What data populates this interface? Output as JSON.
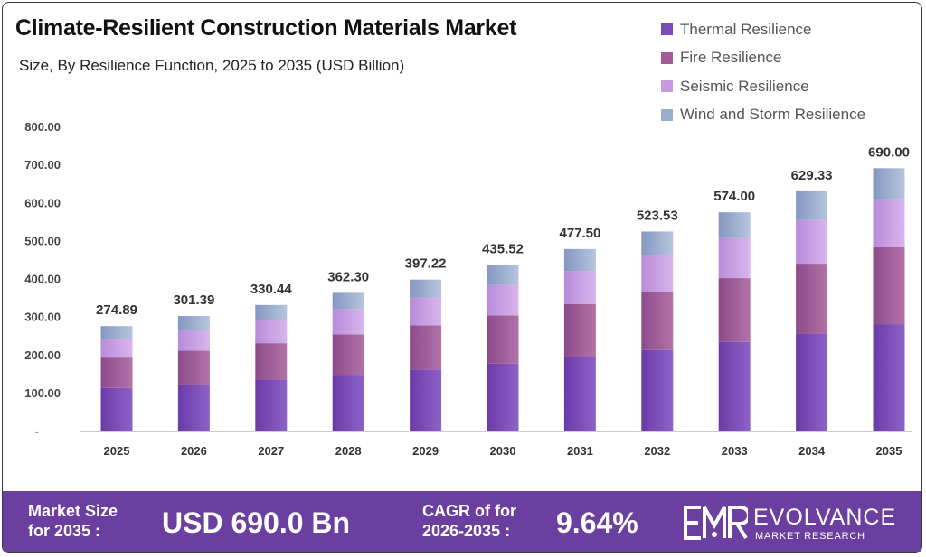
{
  "title": "Climate-Resilient Construction Materials Market",
  "subtitle": "Size, By Resilience Function, 2025 to 2035 (USD Billion)",
  "legend": [
    {
      "label": "Thermal Resilience",
      "color": "#7b4bb8"
    },
    {
      "label": "Fire Resilience",
      "color": "#a45b98"
    },
    {
      "label": "Seismic Resilience",
      "color": "#c79be0"
    },
    {
      "label": "Wind and Storm Resilience",
      "color": "#9aaed0"
    }
  ],
  "chart_data": {
    "type": "bar",
    "stacked": true,
    "categories": [
      "2025",
      "2026",
      "2027",
      "2028",
      "2029",
      "2030",
      "2031",
      "2032",
      "2033",
      "2034",
      "2035"
    ],
    "totals": [
      "274.89",
      "301.39",
      "330.44",
      "362.30",
      "397.22",
      "435.52",
      "477.50",
      "523.53",
      "574.00",
      "629.33",
      "690.00"
    ],
    "series": [
      {
        "name": "Thermal Resilience",
        "values": [
          112,
          122,
          134,
          147,
          161,
          176,
          194,
          212,
          233,
          255,
          280
        ]
      },
      {
        "name": "Fire Resilience",
        "values": [
          80,
          88,
          96,
          106,
          116,
          127,
          139,
          153,
          168,
          184,
          202
        ]
      },
      {
        "name": "Seismic Resilience",
        "values": [
          50,
          55,
          60,
          66,
          73,
          80,
          87,
          96,
          105,
          115,
          126
        ]
      },
      {
        "name": "Wind and Storm Resilience",
        "values": [
          32.89,
          36.39,
          40.44,
          43.3,
          47.22,
          52.52,
          57.5,
          62.53,
          68.0,
          75.33,
          82.0
        ]
      }
    ],
    "ylim": [
      0,
      800
    ],
    "yticks": [
      "-",
      "100.00",
      "200.00",
      "300.00",
      "400.00",
      "500.00",
      "600.00",
      "700.00",
      "800.00"
    ],
    "grid": false,
    "legend_position": "top-right"
  },
  "footer": {
    "market_size_label_1": "Market Size",
    "market_size_label_2": "for 2035 :",
    "market_size_value": "USD 690.0 Bn",
    "cagr_label_1": "CAGR of for",
    "cagr_label_2": "2026-2035 :",
    "cagr_value": "9.64%",
    "brand_name": "EVOLVANCE",
    "brand_tagline": "MARKET RESEARCH"
  }
}
